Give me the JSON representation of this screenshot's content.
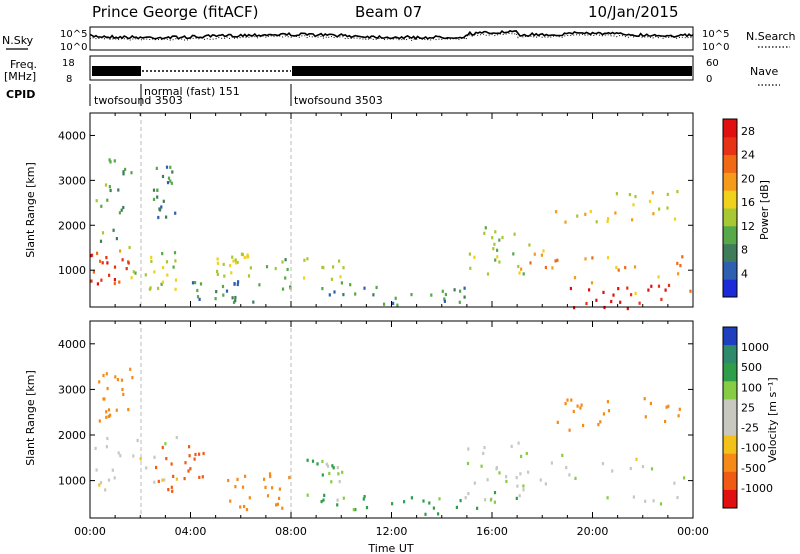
{
  "header": {
    "station": "Prince George (fitACF)",
    "beam": "Beam 07",
    "date": "10/Jan/2015"
  },
  "left_labels": {
    "nsky": "N.Sky",
    "freq_line1": "Freq.",
    "freq_line2": "[MHz]",
    "cpid": "CPID"
  },
  "right_labels": {
    "nsearch": "N.Search",
    "nave": "Nave"
  },
  "noise_panel": {
    "left_ticks": [
      "10^5",
      "10^0"
    ],
    "right_ticks": [
      "10^5",
      "10^0"
    ]
  },
  "freq_panel": {
    "left_ticks": [
      "18",
      "8"
    ],
    "right_ticks": [
      "60",
      "0"
    ]
  },
  "cpid_segments": [
    {
      "label": "twofsound 3503",
      "start_hour": 0
    },
    {
      "label": "normal (fast) 151",
      "start_hour": 2
    },
    {
      "label": "twofsound 3503",
      "start_hour": 8
    }
  ],
  "chart_data": [
    {
      "type": "heatmap",
      "name": "power",
      "ylabel": "Slant Range [km]",
      "xlim": [
        0,
        24
      ],
      "ylim": [
        180,
        4500
      ],
      "yticks": [
        "1000",
        "2000",
        "3000",
        "4000"
      ],
      "colorbar": {
        "label": "Power [dB]",
        "ticks": [
          "4",
          "8",
          "12",
          "16",
          "20",
          "24",
          "28"
        ],
        "colors": [
          "#1c2bd8",
          "#2e5fb0",
          "#3f7d5a",
          "#56a849",
          "#a7c832",
          "#f0d21c",
          "#f59a1b",
          "#f06a16",
          "#e83216",
          "#e01010"
        ]
      },
      "regions": [
        {
          "t": [
            0.0,
            1.5
          ],
          "r": [
            700,
            1500
          ],
          "v": 24
        },
        {
          "t": [
            0.2,
            1.8
          ],
          "r": [
            1500,
            3500
          ],
          "v": 10
        },
        {
          "t": [
            1.6,
            3.5
          ],
          "r": [
            600,
            1500
          ],
          "v": 14
        },
        {
          "t": [
            2.5,
            3.4
          ],
          "r": [
            2200,
            3400
          ],
          "v": 8
        },
        {
          "t": [
            5.0,
            6.5
          ],
          "r": [
            900,
            1400
          ],
          "v": 16
        },
        {
          "t": [
            4.0,
            6.8
          ],
          "r": [
            300,
            800
          ],
          "v": 8
        },
        {
          "t": [
            7.0,
            10.5
          ],
          "r": [
            600,
            1300
          ],
          "v": 12
        },
        {
          "t": [
            9.5,
            15.0
          ],
          "r": [
            250,
            700
          ],
          "v": 8
        },
        {
          "t": [
            15.0,
            17.5
          ],
          "r": [
            800,
            2000
          ],
          "v": 14
        },
        {
          "t": [
            17.0,
            24.0
          ],
          "r": [
            500,
            1500
          ],
          "v": 20
        },
        {
          "t": [
            19.0,
            23.0
          ],
          "r": [
            180,
            700
          ],
          "v": 28
        },
        {
          "t": [
            18.5,
            23.5
          ],
          "r": [
            2100,
            2800
          ],
          "v": 16
        }
      ]
    },
    {
      "type": "heatmap",
      "name": "velocity",
      "ylabel": "Slant Range [km]",
      "xlabel": "Time UT",
      "xlim": [
        0,
        24
      ],
      "ylim": [
        180,
        4500
      ],
      "yticks": [
        "1000",
        "2000",
        "3000",
        "4000"
      ],
      "xticks": [
        "00:00",
        "04:00",
        "08:00",
        "12:00",
        "16:00",
        "20:00",
        "00:00"
      ],
      "colorbar": {
        "label": "Velocity [m s⁻¹]",
        "ticks": [
          "1000",
          "500",
          "100",
          "25",
          "-25",
          "-100",
          "-500",
          "-1000"
        ],
        "colors": [
          "#1f3fbf",
          "#2e8a6a",
          "#2f9e4a",
          "#86cc44",
          "#c8c8c0",
          "#c8c8c0",
          "#f2c21a",
          "#f58a18",
          "#f05a14",
          "#e01010"
        ]
      },
      "regions": [
        {
          "t": [
            0.0,
            3.5
          ],
          "r": [
            800,
            2000
          ],
          "v": 0
        },
        {
          "t": [
            0.3,
            1.7
          ],
          "r": [
            2200,
            3500
          ],
          "v": -300
        },
        {
          "t": [
            2.5,
            4.5
          ],
          "r": [
            800,
            1800
          ],
          "v": -600
        },
        {
          "t": [
            5.0,
            8.0
          ],
          "r": [
            300,
            1200
          ],
          "v": -200
        },
        {
          "t": [
            8.5,
            10.0
          ],
          "r": [
            500,
            1500
          ],
          "v": 50
        },
        {
          "t": [
            10.0,
            16.0
          ],
          "r": [
            250,
            700
          ],
          "v": 60
        },
        {
          "t": [
            15.0,
            17.5
          ],
          "r": [
            500,
            2000
          ],
          "v": 20
        },
        {
          "t": [
            17.0,
            24.0
          ],
          "r": [
            500,
            1600
          ],
          "v": 0
        },
        {
          "t": [
            18.5,
            23.5
          ],
          "r": [
            2000,
            2900
          ],
          "v": -400
        }
      ]
    }
  ]
}
